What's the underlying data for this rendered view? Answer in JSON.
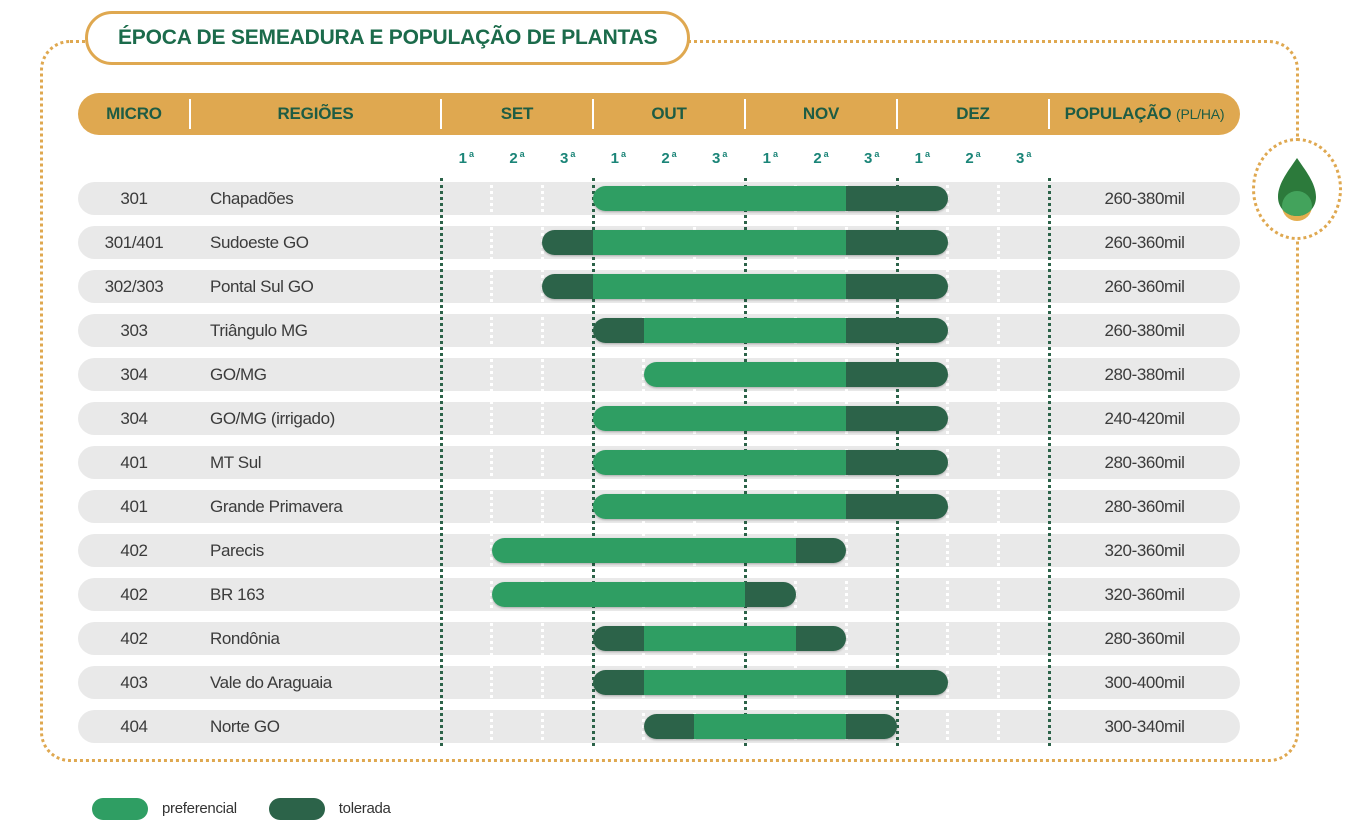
{
  "title": "ÉPOCA DE SEMEADURA E POPULAÇÃO DE PLANTAS",
  "header": {
    "micro": "MICRO",
    "regions": "REGIÕES",
    "months": [
      "SET",
      "OUT",
      "NOV",
      "DEZ"
    ],
    "population": "POPULAÇÃO",
    "population_unit": "(PL/HA)"
  },
  "decade_labels": [
    "1",
    "2",
    "3"
  ],
  "ordinal_suffix": "a",
  "legend": [
    {
      "label": "preferencial",
      "color": "#2F9E63"
    },
    {
      "label": "tolerada",
      "color": "#2C6349"
    }
  ],
  "colors": {
    "gold": "#DFA850",
    "title_green": "#1B6B4B",
    "header_text_green": "#1E5C44",
    "decade_teal": "#1B8578",
    "preferencial": "#2F9E63",
    "tolerada": "#2C6349",
    "row_background": "#E9E9E9",
    "body_text": "#3B3B3B"
  },
  "chart_data": {
    "type": "bar",
    "subtype": "horizontal-gantt-seeding-windows",
    "title": "ÉPOCA DE SEMEADURA E POPULAÇÃO DE PLANTAS",
    "x_axis": {
      "months": [
        "SET",
        "OUT",
        "NOV",
        "DEZ"
      ],
      "decades_per_month": 3,
      "tick_labels": [
        "1ª",
        "2ª",
        "3ª"
      ],
      "units_note": "segment start/end are decade indices 0-11 across SET-DEZ, end exclusive"
    },
    "legend": [
      "preferencial",
      "tolerada"
    ],
    "rows": [
      {
        "micro": "301",
        "region": "Chapadões",
        "population": "260-380mil",
        "segments": [
          {
            "type": "preferencial",
            "start": 3,
            "end": 8
          },
          {
            "type": "tolerada",
            "start": 8,
            "end": 10
          }
        ]
      },
      {
        "micro": "301/401",
        "region": "Sudoeste GO",
        "population": "260-360mil",
        "segments": [
          {
            "type": "tolerada",
            "start": 2,
            "end": 3
          },
          {
            "type": "preferencial",
            "start": 3,
            "end": 8
          },
          {
            "type": "tolerada",
            "start": 8,
            "end": 10
          }
        ]
      },
      {
        "micro": "302/303",
        "region": "Pontal Sul GO",
        "population": "260-360mil",
        "segments": [
          {
            "type": "tolerada",
            "start": 2,
            "end": 3
          },
          {
            "type": "preferencial",
            "start": 3,
            "end": 8
          },
          {
            "type": "tolerada",
            "start": 8,
            "end": 10
          }
        ]
      },
      {
        "micro": "303",
        "region": "Triângulo MG",
        "population": "260-380mil",
        "segments": [
          {
            "type": "tolerada",
            "start": 3,
            "end": 4
          },
          {
            "type": "preferencial",
            "start": 4,
            "end": 8
          },
          {
            "type": "tolerada",
            "start": 8,
            "end": 10
          }
        ]
      },
      {
        "micro": "304",
        "region": "GO/MG",
        "population": "280-380mil",
        "segments": [
          {
            "type": "preferencial",
            "start": 4,
            "end": 8
          },
          {
            "type": "tolerada",
            "start": 8,
            "end": 10
          }
        ]
      },
      {
        "micro": "304",
        "region": "GO/MG (irrigado)",
        "population": "240-420mil",
        "segments": [
          {
            "type": "preferencial",
            "start": 3,
            "end": 8
          },
          {
            "type": "tolerada",
            "start": 8,
            "end": 10
          }
        ]
      },
      {
        "micro": "401",
        "region": "MT Sul",
        "population": "280-360mil",
        "segments": [
          {
            "type": "preferencial",
            "start": 3,
            "end": 8
          },
          {
            "type": "tolerada",
            "start": 8,
            "end": 10
          }
        ]
      },
      {
        "micro": "401",
        "region": "Grande Primavera",
        "population": "280-360mil",
        "segments": [
          {
            "type": "preferencial",
            "start": 3,
            "end": 8
          },
          {
            "type": "tolerada",
            "start": 8,
            "end": 10
          }
        ]
      },
      {
        "micro": "402",
        "region": "Parecis",
        "population": "320-360mil",
        "segments": [
          {
            "type": "preferencial",
            "start": 1,
            "end": 7
          },
          {
            "type": "tolerada",
            "start": 7,
            "end": 8
          }
        ]
      },
      {
        "micro": "402",
        "region": "BR 163",
        "population": "320-360mil",
        "segments": [
          {
            "type": "preferencial",
            "start": 1,
            "end": 6
          },
          {
            "type": "tolerada",
            "start": 6,
            "end": 7
          }
        ]
      },
      {
        "micro": "402",
        "region": "Rondônia",
        "population": "280-360mil",
        "segments": [
          {
            "type": "tolerada",
            "start": 3,
            "end": 4
          },
          {
            "type": "preferencial",
            "start": 4,
            "end": 7
          },
          {
            "type": "tolerada",
            "start": 7,
            "end": 8
          }
        ]
      },
      {
        "micro": "403",
        "region": "Vale do Araguaia",
        "population": "300-400mil",
        "segments": [
          {
            "type": "tolerada",
            "start": 3,
            "end": 4
          },
          {
            "type": "preferencial",
            "start": 4,
            "end": 8
          },
          {
            "type": "tolerada",
            "start": 8,
            "end": 10
          }
        ]
      },
      {
        "micro": "404",
        "region": "Norte GO",
        "population": "300-340mil",
        "segments": [
          {
            "type": "tolerada",
            "start": 4,
            "end": 5
          },
          {
            "type": "preferencial",
            "start": 5,
            "end": 8
          },
          {
            "type": "tolerada",
            "start": 8,
            "end": 9
          }
        ]
      }
    ]
  }
}
